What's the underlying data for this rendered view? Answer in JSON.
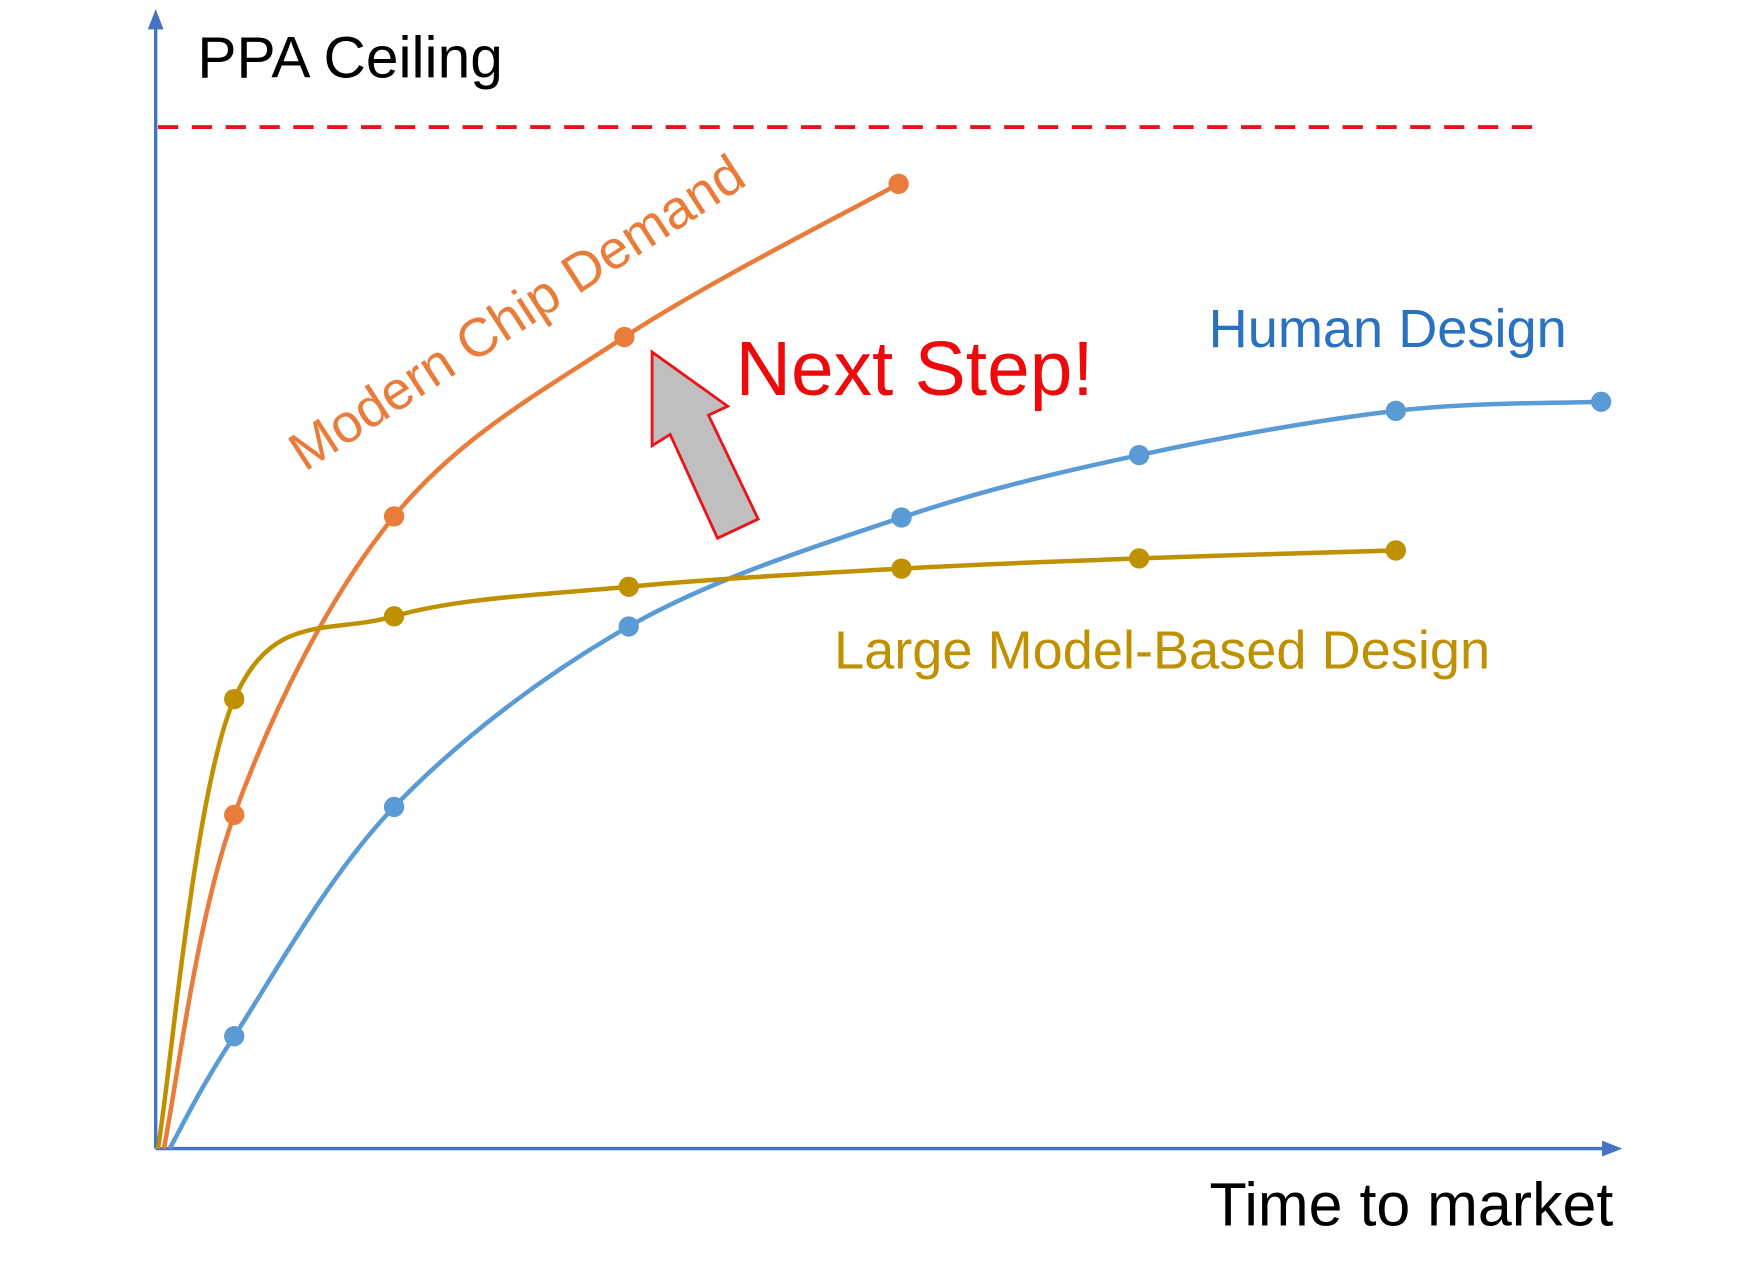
{
  "chart_data": {
    "type": "line",
    "ylabel": "PPA Ceiling",
    "xlabel": "Time to market",
    "xlim": [
      0,
      100
    ],
    "ylim": [
      0,
      100
    ],
    "ceiling": 90,
    "ceiling_color": "#e8141b",
    "series": [
      {
        "name": "Modern Chip Demand",
        "color": "#e97c3a",
        "x": [
          0.4,
          5.2,
          16.1,
          31.8,
          50.5
        ],
        "values": [
          0,
          29.4,
          55.7,
          71.5,
          85.0
        ]
      },
      {
        "name": "Human Design",
        "color": "#5b9bd5",
        "x": [
          0.8,
          5.2,
          16.1,
          32.1,
          50.7,
          66.9,
          84.4,
          98.4
        ],
        "values": [
          0,
          9.9,
          30.1,
          46.0,
          55.6,
          61.1,
          65.0,
          65.8
        ]
      },
      {
        "name": "Large Model-Based Design",
        "color": "#bf9000",
        "x": [
          0,
          5.2,
          16.1,
          32.1,
          50.7,
          66.9,
          84.4
        ],
        "values": [
          0,
          39.6,
          46.9,
          49.5,
          51.1,
          52.0,
          52.7
        ]
      }
    ],
    "annotation": {
      "text": "Next Step!",
      "color": "#ee0a0a"
    }
  }
}
